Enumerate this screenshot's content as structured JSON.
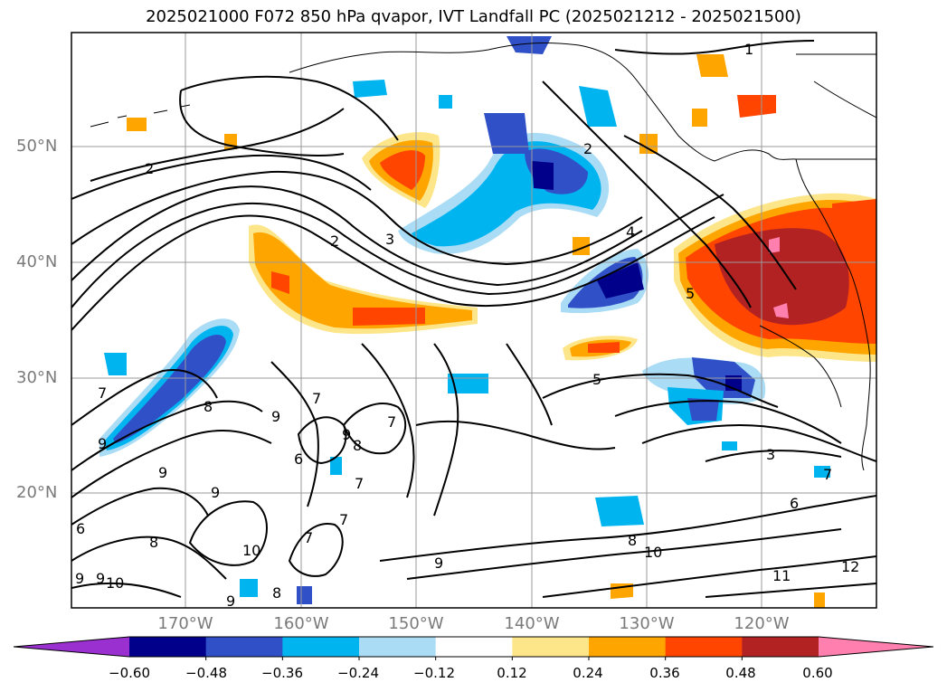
{
  "title": "2025021000 F072 850 hPa qvapor, IVT Landfall PC (2025021212 - 2025021500)",
  "map": {
    "lat_labels": [
      "50°N",
      "40°N",
      "30°N",
      "20°N"
    ],
    "lon_labels": [
      "170°W",
      "160°W",
      "150°W",
      "140°W",
      "130°W",
      "120°W"
    ],
    "contour_labels": [
      "1",
      "2",
      "2",
      "2",
      "3",
      "4",
      "5",
      "5",
      "3",
      "6",
      "7",
      "7",
      "8",
      "9",
      "9",
      "8",
      "9",
      "9",
      "10",
      "10",
      "8",
      "9",
      "10",
      "11",
      "12",
      "9",
      "8",
      "7",
      "6",
      "7",
      "9",
      "7",
      "8",
      "7",
      "6",
      "9",
      "7",
      "9"
    ]
  },
  "colorbar": {
    "ticks": [
      "−0.60",
      "−0.48",
      "−0.36",
      "−0.24",
      "−0.12",
      "0.12",
      "0.24",
      "0.36",
      "0.48",
      "0.60"
    ],
    "colors": [
      "#9a30d0",
      "#00008b",
      "#3050c8",
      "#00b4f0",
      "#aadcf5",
      "#ffffff",
      "#fde68a",
      "#ffa500",
      "#ff4500",
      "#b22222",
      "#ff7fae"
    ]
  }
}
